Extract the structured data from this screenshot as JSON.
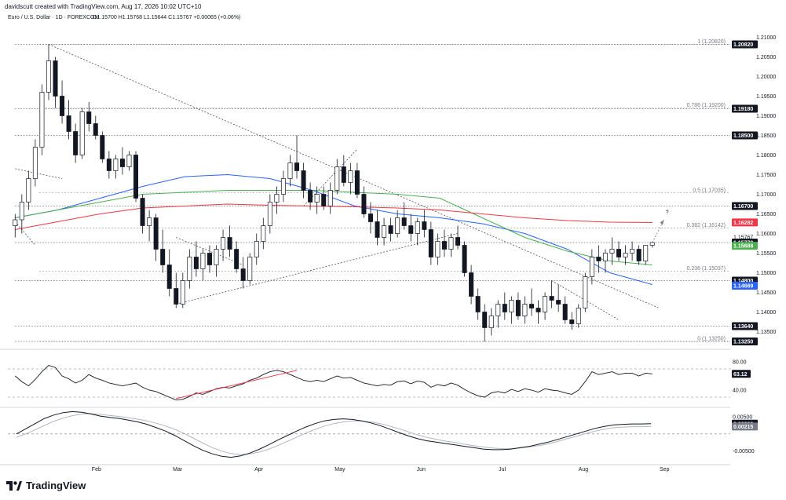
{
  "header": {
    "text": "davidscutt created with TradingView.com, Aug 17, 2026 10:02 UTC+10"
  },
  "legend": {
    "symbol": "Euro / U.S. Dollar · 1D · FOREXCOM",
    "ohlc": "O1.15700  H1.15768  L1.15644  C1.15767  +0.00065 (+0.06%)"
  },
  "brand": {
    "name": "TradingView"
  },
  "chart_data": [
    {
      "type": "candlestick",
      "pane": "price",
      "ylim": [
        1.1315,
        1.2115
      ],
      "y_ticks": [
        "1.21000",
        "1.20500",
        "1.20000",
        "1.19500",
        "1.19000",
        "1.18500",
        "1.18000",
        "1.17500",
        "1.17000",
        "1.16500",
        "1.16000",
        "1.15500",
        "1.15000",
        "1.14500",
        "1.14000",
        "1.13500"
      ],
      "x_tick_labels": [
        "Feb",
        "Mar",
        "Apr",
        "May",
        "Jun",
        "Jul",
        "Aug",
        "Sep"
      ],
      "ohlc_points": [
        [
          1.162,
          1.165,
          1.159,
          1.1635
        ],
        [
          1.1635,
          1.17,
          1.16,
          1.168
        ],
        [
          1.168,
          1.176,
          1.166,
          1.174
        ],
        [
          1.174,
          1.184,
          1.172,
          1.182
        ],
        [
          1.182,
          1.198,
          1.18,
          1.196
        ],
        [
          1.196,
          1.2082,
          1.194,
          1.204
        ],
        [
          1.204,
          1.205,
          1.192,
          1.195
        ],
        [
          1.195,
          1.199,
          1.188,
          1.19
        ],
        [
          1.19,
          1.194,
          1.184,
          1.186
        ],
        [
          1.186,
          1.188,
          1.178,
          1.18
        ],
        [
          1.18,
          1.192,
          1.179,
          1.191
        ],
        [
          1.191,
          1.1935,
          1.186,
          1.188
        ],
        [
          1.188,
          1.19,
          1.184,
          1.185
        ],
        [
          1.185,
          1.186,
          1.178,
          1.179
        ],
        [
          1.179,
          1.181,
          1.174,
          1.176
        ],
        [
          1.176,
          1.18,
          1.174,
          1.179
        ],
        [
          1.179,
          1.182,
          1.175,
          1.177
        ],
        [
          1.177,
          1.181,
          1.176,
          1.18
        ],
        [
          1.18,
          1.181,
          1.168,
          1.169
        ],
        [
          1.169,
          1.17,
          1.16,
          1.162
        ],
        [
          1.162,
          1.166,
          1.158,
          1.164
        ],
        [
          1.164,
          1.165,
          1.153,
          1.156
        ],
        [
          1.156,
          1.161,
          1.15,
          1.152
        ],
        [
          1.152,
          1.156,
          1.144,
          1.146
        ],
        [
          1.146,
          1.15,
          1.141,
          1.142
        ],
        [
          1.142,
          1.15,
          1.141,
          1.148
        ],
        [
          1.148,
          1.156,
          1.146,
          1.154
        ],
        [
          1.154,
          1.158,
          1.149,
          1.151
        ],
        [
          1.151,
          1.156,
          1.148,
          1.155
        ],
        [
          1.155,
          1.157,
          1.15,
          1.152
        ],
        [
          1.152,
          1.157,
          1.149,
          1.156
        ],
        [
          1.156,
          1.161,
          1.153,
          1.159
        ],
        [
          1.159,
          1.162,
          1.154,
          1.156
        ],
        [
          1.156,
          1.158,
          1.15,
          1.151
        ],
        [
          1.151,
          1.154,
          1.146,
          1.148
        ],
        [
          1.148,
          1.155,
          1.147,
          1.154
        ],
        [
          1.154,
          1.16,
          1.152,
          1.158
        ],
        [
          1.158,
          1.164,
          1.156,
          1.162
        ],
        [
          1.162,
          1.17,
          1.16,
          1.168
        ],
        [
          1.168,
          1.172,
          1.165,
          1.17
        ],
        [
          1.17,
          1.176,
          1.168,
          1.174
        ],
        [
          1.174,
          1.18,
          1.172,
          1.178
        ],
        [
          1.178,
          1.185,
          1.174,
          1.176
        ],
        [
          1.176,
          1.178,
          1.169,
          1.171
        ],
        [
          1.171,
          1.173,
          1.166,
          1.168
        ],
        [
          1.168,
          1.172,
          1.165,
          1.17
        ],
        [
          1.17,
          1.172,
          1.166,
          1.167
        ],
        [
          1.167,
          1.173,
          1.165,
          1.171
        ],
        [
          1.171,
          1.179,
          1.17,
          1.177
        ],
        [
          1.177,
          1.18,
          1.172,
          1.173
        ],
        [
          1.173,
          1.178,
          1.17,
          1.176
        ],
        [
          1.176,
          1.178,
          1.169,
          1.17
        ],
        [
          1.17,
          1.172,
          1.164,
          1.165
        ],
        [
          1.165,
          1.168,
          1.16,
          1.163
        ],
        [
          1.163,
          1.166,
          1.157,
          1.159
        ],
        [
          1.159,
          1.164,
          1.157,
          1.162
        ],
        [
          1.162,
          1.164,
          1.158,
          1.16
        ],
        [
          1.16,
          1.166,
          1.159,
          1.164
        ],
        [
          1.164,
          1.168,
          1.161,
          1.162
        ],
        [
          1.162,
          1.165,
          1.158,
          1.16
        ],
        [
          1.16,
          1.164,
          1.157,
          1.163
        ],
        [
          1.163,
          1.166,
          1.159,
          1.161
        ],
        [
          1.161,
          1.163,
          1.152,
          1.154
        ],
        [
          1.154,
          1.16,
          1.152,
          1.158
        ],
        [
          1.158,
          1.161,
          1.154,
          1.156
        ],
        [
          1.156,
          1.16,
          1.154,
          1.159
        ],
        [
          1.159,
          1.162,
          1.156,
          1.157
        ],
        [
          1.157,
          1.158,
          1.149,
          1.15
        ],
        [
          1.15,
          1.152,
          1.142,
          1.144
        ],
        [
          1.144,
          1.146,
          1.138,
          1.14
        ],
        [
          1.14,
          1.142,
          1.1325,
          1.136
        ],
        [
          1.136,
          1.141,
          1.134,
          1.139
        ],
        [
          1.139,
          1.143,
          1.136,
          1.142
        ],
        [
          1.142,
          1.145,
          1.138,
          1.14
        ],
        [
          1.14,
          1.144,
          1.137,
          1.143
        ],
        [
          1.143,
          1.145,
          1.138,
          1.139
        ],
        [
          1.139,
          1.144,
          1.137,
          1.142
        ],
        [
          1.142,
          1.146,
          1.139,
          1.141
        ],
        [
          1.141,
          1.143,
          1.137,
          1.14
        ],
        [
          1.14,
          1.145,
          1.138,
          1.144
        ],
        [
          1.144,
          1.148,
          1.141,
          1.143
        ],
        [
          1.143,
          1.147,
          1.14,
          1.142
        ],
        [
          1.142,
          1.144,
          1.137,
          1.138
        ],
        [
          1.138,
          1.14,
          1.1355,
          1.137
        ],
        [
          1.137,
          1.142,
          1.136,
          1.141
        ],
        [
          1.141,
          1.15,
          1.14,
          1.149
        ],
        [
          1.149,
          1.156,
          1.147,
          1.154
        ],
        [
          1.154,
          1.157,
          1.15,
          1.153
        ],
        [
          1.153,
          1.156,
          1.15,
          1.155
        ],
        [
          1.155,
          1.159,
          1.152,
          1.156
        ],
        [
          1.156,
          1.158,
          1.153,
          1.154
        ],
        [
          1.154,
          1.157,
          1.152,
          1.155
        ],
        [
          1.155,
          1.158,
          1.153,
          1.156
        ],
        [
          1.156,
          1.157,
          1.152,
          1.153
        ],
        [
          1.153,
          1.157,
          1.152,
          1.157
        ],
        [
          1.157,
          1.1577,
          1.1564,
          1.1577
        ]
      ],
      "series": [
        {
          "role": "ma-blue",
          "values": [
            1.164,
            1.166,
            1.169,
            1.172,
            1.1745,
            1.175,
            1.174,
            1.171,
            1.167,
            1.165,
            1.164,
            1.1625,
            1.16,
            1.156,
            1.15,
            1.147
          ]
        },
        {
          "role": "ma-green",
          "values": [
            1.164,
            1.166,
            1.168,
            1.17,
            1.1705,
            1.171,
            1.171,
            1.171,
            1.1705,
            1.17,
            1.169,
            1.164,
            1.159,
            1.1555,
            1.153,
            1.152
          ]
        },
        {
          "role": "ma-red",
          "values": [
            1.161,
            1.163,
            1.165,
            1.1665,
            1.167,
            1.1675,
            1.1672,
            1.167,
            1.1668,
            1.1665,
            1.166,
            1.165,
            1.164,
            1.1633,
            1.1629,
            1.1628
          ]
        }
      ],
      "fib_levels": [
        {
          "label": "1 (1.20820)",
          "value": 1.2082
        },
        {
          "label": "0.786 (1.19200)",
          "value": 1.192
        },
        {
          "label": "0.5 (1.17035)",
          "value": 1.17035
        },
        {
          "label": "0.382 (1.16142)",
          "value": 1.16142
        },
        {
          "label": "0.236 (1.15037)",
          "value": 1.15037
        },
        {
          "label": "0 (1.13250)",
          "value": 1.1325
        }
      ],
      "horizontal_levels": [
        1.2082,
        1.1918,
        1.185,
        1.167,
        1.1577,
        1.148,
        1.1364,
        1.1325
      ],
      "price_tags": [
        {
          "label": "1.20820",
          "value": 1.2082,
          "color": "#131722",
          "text_color": "#ffffff"
        },
        {
          "label": "1.19180",
          "value": 1.1918,
          "color": "#131722",
          "text_color": "#ffffff"
        },
        {
          "label": "1.18500",
          "value": 1.185,
          "color": "#131722",
          "text_color": "#ffffff"
        },
        {
          "label": "1.16700",
          "value": 1.167,
          "color": "#131722",
          "text_color": "#ffffff"
        },
        {
          "label": "1.16282",
          "value": 1.16282,
          "color": "#f23645",
          "text_color": "#ffffff"
        },
        {
          "label": "1.15770",
          "value": 1.1577,
          "color": "#131722",
          "text_color": "#ffffff"
        },
        {
          "label": "1.15688",
          "value": 1.15688,
          "color": "#4caf50",
          "text_color": "#ffffff"
        },
        {
          "label": "1.14800",
          "value": 1.148,
          "color": "#131722",
          "text_color": "#ffffff"
        },
        {
          "label": "1.14669",
          "value": 1.14669,
          "color": "#2962ff",
          "text_color": "#ffffff"
        },
        {
          "label": "1.13640",
          "value": 1.1364,
          "color": "#131722",
          "text_color": "#ffffff"
        },
        {
          "label": "1.13250",
          "value": 1.1325,
          "color": "#131722",
          "text_color": "#ffffff"
        }
      ],
      "current_price_label": "1.15767",
      "annotation": "?"
    },
    {
      "type": "line",
      "pane": "rsi",
      "ylim": [
        20,
        90
      ],
      "y_ticks": [
        "80.00",
        "40.00"
      ],
      "reference_lines": [
        70,
        30
      ],
      "values": [
        60,
        52,
        46,
        55,
        66,
        75,
        72,
        60,
        56,
        50,
        54,
        62,
        57,
        54,
        50,
        48,
        46,
        48,
        50,
        44,
        40,
        38,
        34,
        30,
        26,
        27,
        31,
        36,
        34,
        38,
        42,
        44,
        43,
        46,
        49,
        54,
        57,
        62,
        66,
        68,
        66,
        62,
        58,
        54,
        52,
        54,
        52,
        56,
        60,
        57,
        58,
        54,
        50,
        48,
        46,
        48,
        47,
        52,
        53,
        49,
        53,
        51,
        44,
        48,
        46,
        50,
        47,
        41,
        36,
        32,
        30,
        36,
        38,
        36,
        41,
        38,
        42,
        40,
        37,
        42,
        40,
        39,
        36,
        34,
        40,
        52,
        66,
        62,
        64,
        66,
        62,
        64,
        64,
        60,
        64,
        63
      ],
      "current_label": "63.12",
      "trendline": [
        [
          24,
          28
        ],
        [
          42,
          68
        ]
      ]
    },
    {
      "type": "line",
      "pane": "macd",
      "ylim": [
        -0.0085,
        0.0075
      ],
      "y_ticks": [
        "0.00500",
        "-0.00500"
      ],
      "series": [
        {
          "role": "macd",
          "values": [
            0.0,
            0.0015,
            0.003,
            0.0045,
            0.0055,
            0.0062,
            0.0065,
            0.0063,
            0.0058,
            0.0052,
            0.0048,
            0.0045,
            0.004,
            0.0035,
            0.0028,
            0.0018,
            0.0008,
            -0.0005,
            -0.002,
            -0.0035,
            -0.0048,
            -0.0058,
            -0.0065,
            -0.0068,
            -0.0064,
            -0.0056,
            -0.0045,
            -0.0032,
            -0.0018,
            -0.0005,
            0.0008,
            0.002,
            0.003,
            0.0038,
            0.0042,
            0.0044,
            0.0042,
            0.0038,
            0.0032,
            0.0024,
            0.0014,
            0.0004,
            -0.0006,
            -0.0014,
            -0.002,
            -0.0024,
            -0.0028,
            -0.0032,
            -0.0036,
            -0.004,
            -0.0044,
            -0.0046,
            -0.0046,
            -0.0044,
            -0.004,
            -0.0036,
            -0.003,
            -0.0024,
            -0.0016,
            -0.0008,
            0.0,
            0.0008,
            0.0016,
            0.0022,
            0.0026,
            0.0028,
            0.0029,
            0.0029,
            0.003
          ]
        },
        {
          "role": "signal",
          "values": [
            -0.001,
            0.0,
            0.0012,
            0.0025,
            0.0037,
            0.0046,
            0.0053,
            0.0058,
            0.0059,
            0.0057,
            0.0054,
            0.0051,
            0.0047,
            0.0043,
            0.0038,
            0.0031,
            0.0023,
            0.0013,
            0.0001,
            -0.0013,
            -0.0027,
            -0.004,
            -0.005,
            -0.0057,
            -0.006,
            -0.0058,
            -0.0053,
            -0.0045,
            -0.0034,
            -0.0022,
            -0.001,
            0.0002,
            0.0013,
            0.0023,
            0.003,
            0.0035,
            0.0038,
            0.0038,
            0.0035,
            0.003,
            0.0023,
            0.0015,
            0.0006,
            -0.0003,
            -0.001,
            -0.0016,
            -0.0021,
            -0.0025,
            -0.003,
            -0.0034,
            -0.0038,
            -0.0041,
            -0.0043,
            -0.0043,
            -0.0041,
            -0.0038,
            -0.0034,
            -0.0029,
            -0.0022,
            -0.0014,
            -0.0007,
            0.0001,
            0.0008,
            0.0014,
            0.0018,
            0.002,
            0.0021,
            0.0021,
            0.0022
          ]
        }
      ],
      "tags": [
        {
          "label": "0.00298",
          "value": 0.00298,
          "color": "#131722"
        },
        {
          "label": "0.00215",
          "value": 0.00215,
          "color": "#787b86"
        }
      ]
    }
  ]
}
